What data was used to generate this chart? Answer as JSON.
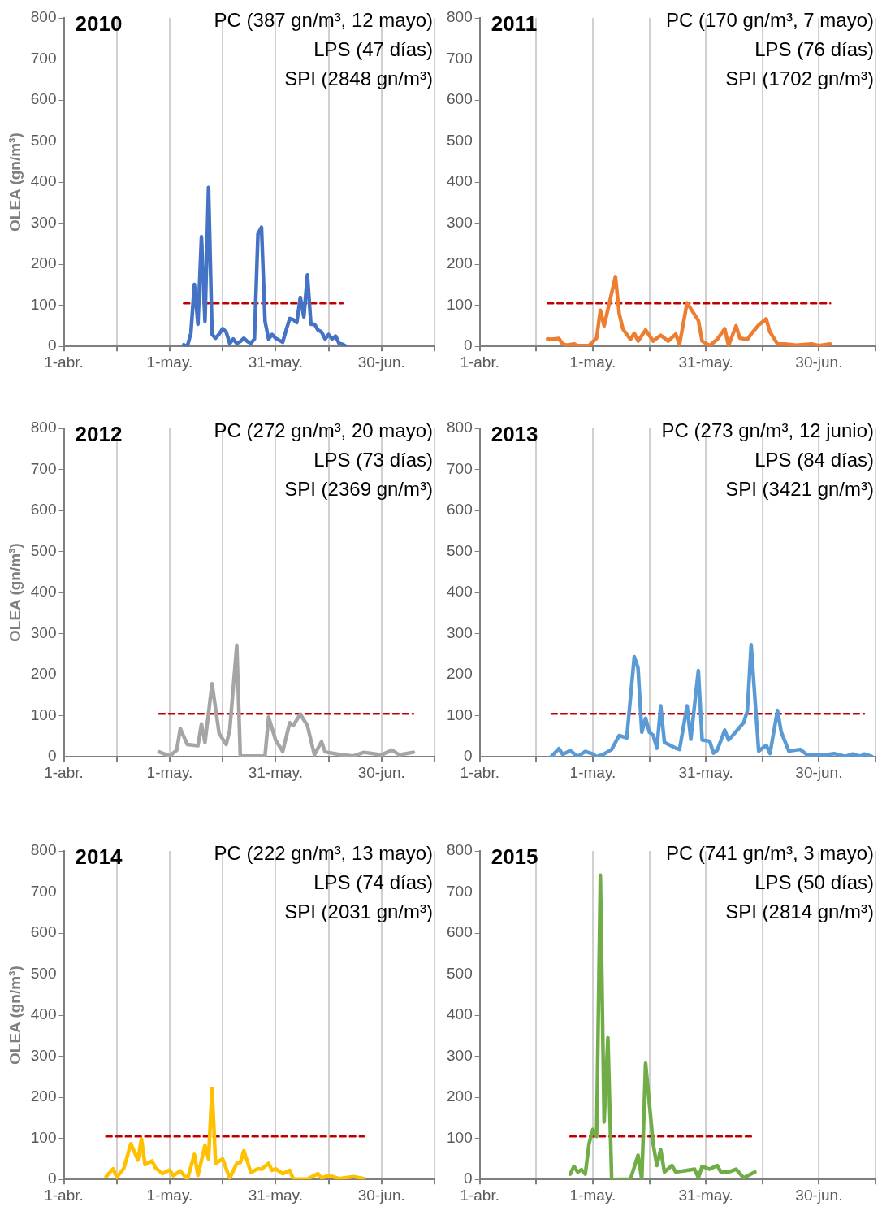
{
  "chart_data": [
    {
      "type": "line",
      "title": "2010",
      "ylabel": "OLEA (gn/m³)",
      "annotations": [
        "PC (387 gn/m³, 12 mayo)",
        "LPS (47 días)",
        "SPI (2848 gn/m³)"
      ],
      "xlim": [
        "2010-04-01",
        "2010-07-15"
      ],
      "xticks": [
        {
          "value": "2010-04-01",
          "label": "1-abr."
        },
        {
          "value": "2010-04-16",
          "label": null
        },
        {
          "value": "2010-05-01",
          "label": "1-may."
        },
        {
          "value": "2010-05-16",
          "label": null
        },
        {
          "value": "2010-05-31",
          "label": "31-may."
        },
        {
          "value": "2010-06-15",
          "label": null
        },
        {
          "value": "2010-06-30",
          "label": "30-jun."
        },
        {
          "value": "2010-07-15",
          "label": null
        }
      ],
      "ylim": [
        0,
        800
      ],
      "yticks": [
        0,
        100,
        200,
        300,
        400,
        500,
        600,
        700,
        800
      ],
      "grid": "x",
      "marker": "none",
      "series": [
        {
          "color": "#4472c4",
          "x": [
            "2010-05-05",
            "2010-05-06",
            "2010-05-07",
            "2010-05-08",
            "2010-05-09",
            "2010-05-10",
            "2010-05-11",
            "2010-05-12",
            "2010-05-13",
            "2010-05-14",
            "2010-05-15",
            "2010-05-16",
            "2010-05-17",
            "2010-05-18",
            "2010-05-19",
            "2010-05-20",
            "2010-05-21",
            "2010-05-22",
            "2010-05-23",
            "2010-05-24",
            "2010-05-25",
            "2010-05-26",
            "2010-05-27",
            "2010-05-28",
            "2010-05-29",
            "2010-05-30",
            "2010-05-31",
            "2010-06-01",
            "2010-06-02",
            "2010-06-03",
            "2010-06-04",
            "2010-06-05",
            "2010-06-06",
            "2010-06-07",
            "2010-06-08",
            "2010-06-09",
            "2010-06-10",
            "2010-06-11",
            "2010-06-12",
            "2010-06-13",
            "2010-06-14",
            "2010-06-15",
            "2010-06-16",
            "2010-06-17",
            "2010-06-18",
            "2010-06-19",
            "2010-06-20"
          ],
          "values": [
            4,
            0,
            32,
            151,
            54,
            267,
            61,
            387,
            29,
            20,
            30,
            43,
            35,
            7,
            18,
            7,
            12,
            20,
            12,
            8,
            18,
            274,
            290,
            61,
            18,
            29,
            20,
            15,
            10,
            40,
            68,
            65,
            58,
            119,
            72,
            174,
            54,
            54,
            40,
            35,
            18,
            29,
            18,
            25,
            7,
            5,
            0
          ]
        },
        {
          "color": "#c00000",
          "line_style": "dashed",
          "x": [
            "2010-05-05",
            "2010-06-19"
          ],
          "values": [
            105,
            105
          ]
        }
      ]
    },
    {
      "type": "line",
      "title": "2011",
      "annotations": [
        "PC (170 gn/m³, 7 mayo)",
        "LPS (76 días)",
        "SPI (1702 gn/m³)"
      ],
      "xlim": [
        "2011-04-01",
        "2011-07-15"
      ],
      "xticks": [
        {
          "value": "2011-04-01",
          "label": "1-abr."
        },
        {
          "value": "2011-04-16",
          "label": null
        },
        {
          "value": "2011-05-01",
          "label": "1-may."
        },
        {
          "value": "2011-05-16",
          "label": null
        },
        {
          "value": "2011-05-31",
          "label": "31-may."
        },
        {
          "value": "2011-06-15",
          "label": null
        },
        {
          "value": "2011-06-30",
          "label": "30-jun."
        },
        {
          "value": "2011-07-15",
          "label": null
        }
      ],
      "ylim": [
        0,
        800
      ],
      "yticks": [
        0,
        100,
        200,
        300,
        400,
        500,
        600,
        700,
        800
      ],
      "grid": "x",
      "marker": "none",
      "series": [
        {
          "color": "#ed7d31",
          "x": [
            "2011-04-19",
            "2011-04-20",
            "2011-04-22",
            "2011-04-23",
            "2011-04-24",
            "2011-04-26",
            "2011-04-27",
            "2011-04-30",
            "2011-05-02",
            "2011-05-03",
            "2011-05-04",
            "2011-05-07",
            "2011-05-08",
            "2011-05-09",
            "2011-05-11",
            "2011-05-12",
            "2011-05-13",
            "2011-05-15",
            "2011-05-17",
            "2011-05-19",
            "2011-05-21",
            "2011-05-23",
            "2011-05-24",
            "2011-05-26",
            "2011-05-29",
            "2011-05-30",
            "2011-06-01",
            "2011-06-03",
            "2011-06-05",
            "2011-06-06",
            "2011-06-08",
            "2011-06-09",
            "2011-06-11",
            "2011-06-12",
            "2011-06-14",
            "2011-06-16",
            "2011-06-17",
            "2011-06-19",
            "2011-06-21",
            "2011-06-24",
            "2011-06-28",
            "2011-06-30",
            "2011-07-03"
          ],
          "values": [
            18,
            17,
            19,
            6,
            3,
            6,
            2,
            2,
            20,
            88,
            50,
            170,
            80,
            42,
            17,
            32,
            13,
            40,
            13,
            27,
            13,
            30,
            5,
            106,
            63,
            13,
            2,
            17,
            43,
            2,
            50,
            20,
            17,
            30,
            52,
            67,
            35,
            6,
            6,
            3,
            6,
            2,
            6
          ]
        },
        {
          "color": "#c00000",
          "line_style": "dashed",
          "x": [
            "2011-04-19",
            "2011-07-03"
          ],
          "values": [
            105,
            105
          ]
        }
      ]
    },
    {
      "type": "line",
      "title": "2012",
      "ylabel": "OLEA (gn/m³)",
      "annotations": [
        "PC (272 gn/m³, 20 mayo)",
        "LPS (73 días)",
        "SPI (2369 gn/m³)"
      ],
      "xlim": [
        "2012-04-01",
        "2012-07-15"
      ],
      "xticks": [
        {
          "value": "2012-04-01",
          "label": "1-abr."
        },
        {
          "value": "2012-04-16",
          "label": null
        },
        {
          "value": "2012-05-01",
          "label": "1-may."
        },
        {
          "value": "2012-05-16",
          "label": null
        },
        {
          "value": "2012-05-31",
          "label": "31-may."
        },
        {
          "value": "2012-06-15",
          "label": null
        },
        {
          "value": "2012-06-30",
          "label": "30-jun."
        },
        {
          "value": "2012-07-15",
          "label": null
        }
      ],
      "ylim": [
        0,
        800
      ],
      "yticks": [
        0,
        100,
        200,
        300,
        400,
        500,
        600,
        700,
        800
      ],
      "grid": "x",
      "marker": "none",
      "series": [
        {
          "color": "#a5a5a5",
          "x": [
            "2012-04-28",
            "2012-05-01",
            "2012-05-03",
            "2012-05-04",
            "2012-05-06",
            "2012-05-09",
            "2012-05-10",
            "2012-05-11",
            "2012-05-13",
            "2012-05-15",
            "2012-05-17",
            "2012-05-18",
            "2012-05-20",
            "2012-05-21",
            "2012-05-28",
            "2012-05-29",
            "2012-05-31",
            "2012-06-02",
            "2012-06-04",
            "2012-06-05",
            "2012-06-07",
            "2012-06-09",
            "2012-06-11",
            "2012-06-13",
            "2012-06-14",
            "2012-06-18",
            "2012-06-22",
            "2012-06-25",
            "2012-06-30",
            "2012-07-03",
            "2012-07-05",
            "2012-07-09"
          ],
          "values": [
            12,
            2,
            16,
            69,
            30,
            27,
            80,
            35,
            178,
            57,
            30,
            65,
            272,
            2,
            2,
            97,
            41,
            13,
            83,
            76,
            104,
            76,
            5,
            37,
            12,
            6,
            2,
            11,
            5,
            16,
            5,
            11
          ]
        },
        {
          "color": "#c00000",
          "line_style": "dashed",
          "x": [
            "2012-04-28",
            "2012-07-09"
          ],
          "values": [
            105,
            105
          ]
        }
      ]
    },
    {
      "type": "line",
      "title": "2013",
      "annotations": [
        "PC (273 gn/m³, 12 junio)",
        "LPS (84 días)",
        "SPI (3421 gn/m³)"
      ],
      "xlim": [
        "2013-04-01",
        "2013-07-15"
      ],
      "xticks": [
        {
          "value": "2013-04-01",
          "label": "1-abr."
        },
        {
          "value": "2013-04-16",
          "label": null
        },
        {
          "value": "2013-05-01",
          "label": "1-may."
        },
        {
          "value": "2013-05-16",
          "label": null
        },
        {
          "value": "2013-05-31",
          "label": "31-may."
        },
        {
          "value": "2013-06-15",
          "label": null
        },
        {
          "value": "2013-06-30",
          "label": "30-jun."
        },
        {
          "value": "2013-07-15",
          "label": null
        }
      ],
      "ylim": [
        0,
        800
      ],
      "yticks": [
        0,
        100,
        200,
        300,
        400,
        500,
        600,
        700,
        800
      ],
      "grid": "x",
      "marker": "none",
      "series": [
        {
          "color": "#5b9bd5",
          "x": [
            "2013-04-20",
            "2013-04-22",
            "2013-04-23",
            "2013-04-25",
            "2013-04-27",
            "2013-04-29",
            "2013-05-01",
            "2013-05-02",
            "2013-05-04",
            "2013-05-06",
            "2013-05-08",
            "2013-05-10",
            "2013-05-12",
            "2013-05-13",
            "2013-05-14",
            "2013-05-15",
            "2013-05-16",
            "2013-05-17",
            "2013-05-18",
            "2013-05-19",
            "2013-05-20",
            "2013-05-23",
            "2013-05-24",
            "2013-05-26",
            "2013-05-27",
            "2013-05-29",
            "2013-05-30",
            "2013-06-01",
            "2013-06-02",
            "2013-06-03",
            "2013-06-05",
            "2013-06-06",
            "2013-06-07",
            "2013-06-10",
            "2013-06-11",
            "2013-06-12",
            "2013-06-14",
            "2013-06-16",
            "2013-06-17",
            "2013-06-19",
            "2013-06-20",
            "2013-06-22",
            "2013-06-25",
            "2013-06-27",
            "2013-07-01",
            "2013-07-04",
            "2013-07-07",
            "2013-07-09",
            "2013-07-11",
            "2013-07-12",
            "2013-07-14"
          ],
          "values": [
            1,
            20,
            6,
            15,
            1,
            13,
            7,
            0,
            7,
            18,
            52,
            46,
            244,
            216,
            60,
            94,
            60,
            53,
            21,
            124,
            35,
            21,
            18,
            124,
            43,
            210,
            41,
            38,
            9,
            16,
            65,
            41,
            51,
            83,
            112,
            273,
            14,
            28,
            8,
            113,
            60,
            14,
            18,
            4,
            4,
            8,
            1,
            7,
            1,
            7,
            1
          ]
        },
        {
          "color": "#c00000",
          "line_style": "dashed",
          "x": [
            "2013-04-20",
            "2013-07-12"
          ],
          "values": [
            105,
            105
          ]
        }
      ]
    },
    {
      "type": "line",
      "title": "2014",
      "ylabel": "OLEA (gn/m³)",
      "annotations": [
        "PC (222 gn/m³, 13 mayo)",
        "LPS (74 días)",
        "SPI (2031 gn/m³)"
      ],
      "xlim": [
        "2014-04-01",
        "2014-07-15"
      ],
      "xticks": [
        {
          "value": "2014-04-01",
          "label": "1-abr."
        },
        {
          "value": "2014-04-16",
          "label": null
        },
        {
          "value": "2014-05-01",
          "label": "1-may."
        },
        {
          "value": "2014-05-16",
          "label": null
        },
        {
          "value": "2014-05-31",
          "label": "31-may."
        },
        {
          "value": "2014-06-15",
          "label": null
        },
        {
          "value": "2014-06-30",
          "label": "30-jun."
        },
        {
          "value": "2014-07-15",
          "label": null
        }
      ],
      "ylim": [
        0,
        800
      ],
      "yticks": [
        0,
        100,
        200,
        300,
        400,
        500,
        600,
        700,
        800
      ],
      "grid": "x",
      "marker": "none",
      "series": [
        {
          "color": "#ffc000",
          "x": [
            "2014-04-13",
            "2014-04-15",
            "2014-04-16",
            "2014-04-18",
            "2014-04-20",
            "2014-04-22",
            "2014-04-23",
            "2014-04-24",
            "2014-04-26",
            "2014-04-27",
            "2014-04-29",
            "2014-05-01",
            "2014-05-02",
            "2014-05-04",
            "2014-05-06",
            "2014-05-08",
            "2014-05-09",
            "2014-05-11",
            "2014-05-12",
            "2014-05-13",
            "2014-05-14",
            "2014-05-16",
            "2014-05-18",
            "2014-05-20",
            "2014-05-21",
            "2014-05-22",
            "2014-05-24",
            "2014-05-26",
            "2014-05-27",
            "2014-05-29",
            "2014-05-30",
            "2014-05-31",
            "2014-06-02",
            "2014-06-04",
            "2014-06-05",
            "2014-06-09",
            "2014-06-12",
            "2014-06-13",
            "2014-06-15",
            "2014-06-18",
            "2014-06-22",
            "2014-06-25"
          ],
          "values": [
            7,
            26,
            5,
            27,
            87,
            47,
            99,
            36,
            45,
            28,
            14,
            23,
            9,
            21,
            0,
            61,
            10,
            83,
            50,
            222,
            39,
            50,
            3,
            39,
            41,
            70,
            17,
            26,
            25,
            39,
            22,
            26,
            14,
            22,
            1,
            1,
            14,
            3,
            10,
            2,
            7,
            2
          ]
        },
        {
          "color": "#c00000",
          "line_style": "dashed",
          "x": [
            "2014-04-13",
            "2014-06-25"
          ],
          "values": [
            105,
            105
          ]
        }
      ]
    },
    {
      "type": "line",
      "title": "2015",
      "annotations": [
        "PC (741 gn/m³, 3 mayo)",
        "LPS (50 días)",
        "SPI (2814 gn/m³)"
      ],
      "xlim": [
        "2015-04-01",
        "2015-07-15"
      ],
      "xticks": [
        {
          "value": "2015-04-01",
          "label": "1-abr."
        },
        {
          "value": "2015-04-16",
          "label": null
        },
        {
          "value": "2015-05-01",
          "label": "1-may."
        },
        {
          "value": "2015-05-16",
          "label": null
        },
        {
          "value": "2015-05-31",
          "label": "31-may."
        },
        {
          "value": "2015-06-15",
          "label": null
        },
        {
          "value": "2015-06-30",
          "label": "30-jun."
        },
        {
          "value": "2015-07-15",
          "label": null
        }
      ],
      "ylim": [
        0,
        800
      ],
      "yticks": [
        0,
        100,
        200,
        300,
        400,
        500,
        600,
        700,
        800
      ],
      "grid": "x",
      "marker": "none",
      "series": [
        {
          "color": "#70ad47",
          "x": [
            "2015-04-25",
            "2015-04-26",
            "2015-04-27",
            "2015-04-28",
            "2015-04-29",
            "2015-04-30",
            "2015-05-01",
            "2015-05-02",
            "2015-05-03",
            "2015-05-04",
            "2015-05-05",
            "2015-05-06",
            "2015-05-11",
            "2015-05-13",
            "2015-05-14",
            "2015-05-15",
            "2015-05-17",
            "2015-05-18",
            "2015-05-19",
            "2015-05-20",
            "2015-05-22",
            "2015-05-23",
            "2015-05-26",
            "2015-05-28",
            "2015-05-29",
            "2015-05-30",
            "2015-06-01",
            "2015-06-03",
            "2015-06-04",
            "2015-06-06",
            "2015-06-08",
            "2015-06-10",
            "2015-06-13"
          ],
          "values": [
            13,
            32,
            18,
            24,
            13,
            87,
            122,
            105,
            741,
            140,
            345,
            0,
            1,
            59,
            0,
            283,
            87,
            34,
            73,
            18,
            34,
            18,
            22,
            25,
            4,
            32,
            25,
            34,
            18,
            18,
            25,
            4,
            18
          ]
        },
        {
          "color": "#c00000",
          "line_style": "dashed",
          "x": [
            "2015-04-25",
            "2015-06-12"
          ],
          "values": [
            105,
            105
          ]
        }
      ]
    }
  ]
}
